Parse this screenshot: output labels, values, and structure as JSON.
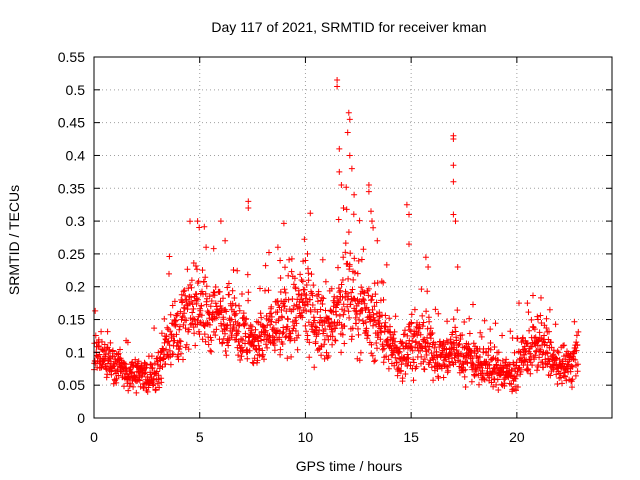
{
  "chart_data": {
    "type": "scatter",
    "title": "Day 117 of 2021, SRMTID for receiver kman",
    "xlabel": "GPS time / hours",
    "ylabel": "SRMTID / TECUs",
    "xlim": [
      0,
      24.5
    ],
    "ylim": [
      0,
      0.55
    ],
    "xticks": [
      0,
      5,
      10,
      15,
      20
    ],
    "xtick_labels": [
      "0",
      "5",
      "10",
      "15",
      "20"
    ],
    "yticks": [
      0,
      0.05,
      0.1,
      0.15,
      0.2,
      0.25,
      0.3,
      0.35,
      0.4,
      0.45,
      0.5,
      0.55
    ],
    "ytick_labels": [
      "0",
      "0.05",
      "0.1",
      "0.15",
      "0.2",
      "0.25",
      "0.3",
      "0.35",
      "0.4",
      "0.45",
      "0.5",
      "0.55"
    ],
    "grid": true,
    "marker": "+",
    "color": "#ff0000",
    "series": [
      {
        "name": "SRMTID",
        "baseline_profile": [
          [
            0.0,
            0.09
          ],
          [
            0.5,
            0.09
          ],
          [
            1.0,
            0.08
          ],
          [
            1.5,
            0.07
          ],
          [
            2.0,
            0.065
          ],
          [
            2.5,
            0.065
          ],
          [
            3.0,
            0.07
          ],
          [
            3.5,
            0.12
          ],
          [
            4.0,
            0.14
          ],
          [
            4.5,
            0.16
          ],
          [
            5.0,
            0.17
          ],
          [
            5.5,
            0.15
          ],
          [
            6.0,
            0.16
          ],
          [
            6.5,
            0.14
          ],
          [
            7.0,
            0.13
          ],
          [
            7.5,
            0.11
          ],
          [
            8.0,
            0.12
          ],
          [
            8.5,
            0.14
          ],
          [
            9.0,
            0.15
          ],
          [
            9.5,
            0.16
          ],
          [
            10.0,
            0.17
          ],
          [
            10.5,
            0.15
          ],
          [
            11.0,
            0.13
          ],
          [
            11.5,
            0.16
          ],
          [
            12.0,
            0.18
          ],
          [
            12.5,
            0.17
          ],
          [
            13.0,
            0.15
          ],
          [
            13.5,
            0.14
          ],
          [
            14.0,
            0.11
          ],
          [
            14.5,
            0.09
          ],
          [
            15.0,
            0.12
          ],
          [
            15.5,
            0.11
          ],
          [
            16.0,
            0.1
          ],
          [
            16.5,
            0.09
          ],
          [
            17.0,
            0.11
          ],
          [
            17.5,
            0.09
          ],
          [
            18.0,
            0.09
          ],
          [
            18.5,
            0.08
          ],
          [
            19.0,
            0.075
          ],
          [
            19.5,
            0.07
          ],
          [
            20.0,
            0.07
          ],
          [
            20.5,
            0.1
          ],
          [
            21.0,
            0.11
          ],
          [
            21.5,
            0.1
          ],
          [
            22.0,
            0.07
          ],
          [
            22.5,
            0.08
          ],
          [
            22.9,
            0.1
          ]
        ],
        "spikes": [
          [
            4.9,
            0.3
          ],
          [
            5.3,
            0.26
          ],
          [
            6.0,
            0.3
          ],
          [
            6.2,
            0.27
          ],
          [
            7.3,
            0.33
          ],
          [
            7.3,
            0.32
          ],
          [
            8.7,
            0.26
          ],
          [
            8.8,
            0.24
          ],
          [
            10.0,
            0.24
          ],
          [
            10.1,
            0.25
          ],
          [
            11.5,
            0.515
          ],
          [
            11.5,
            0.505
          ],
          [
            11.6,
            0.41
          ],
          [
            11.6,
            0.375
          ],
          [
            11.7,
            0.355
          ],
          [
            11.8,
            0.32
          ],
          [
            12.0,
            0.435
          ],
          [
            12.05,
            0.465
          ],
          [
            12.1,
            0.455
          ],
          [
            12.1,
            0.4
          ],
          [
            12.2,
            0.38
          ],
          [
            12.3,
            0.34
          ],
          [
            13.0,
            0.355
          ],
          [
            13.0,
            0.345
          ],
          [
            13.1,
            0.315
          ],
          [
            13.2,
            0.29
          ],
          [
            13.4,
            0.27
          ],
          [
            14.8,
            0.325
          ],
          [
            14.9,
            0.31
          ],
          [
            14.9,
            0.265
          ],
          [
            15.7,
            0.245
          ],
          [
            15.8,
            0.23
          ],
          [
            17.0,
            0.43
          ],
          [
            17.0,
            0.425
          ],
          [
            17.0,
            0.385
          ],
          [
            17.0,
            0.36
          ],
          [
            17.0,
            0.31
          ],
          [
            17.1,
            0.3
          ],
          [
            17.2,
            0.23
          ],
          [
            20.1,
            0.175
          ],
          [
            20.5,
            0.175
          ],
          [
            21.0,
            0.15
          ]
        ]
      }
    ]
  }
}
